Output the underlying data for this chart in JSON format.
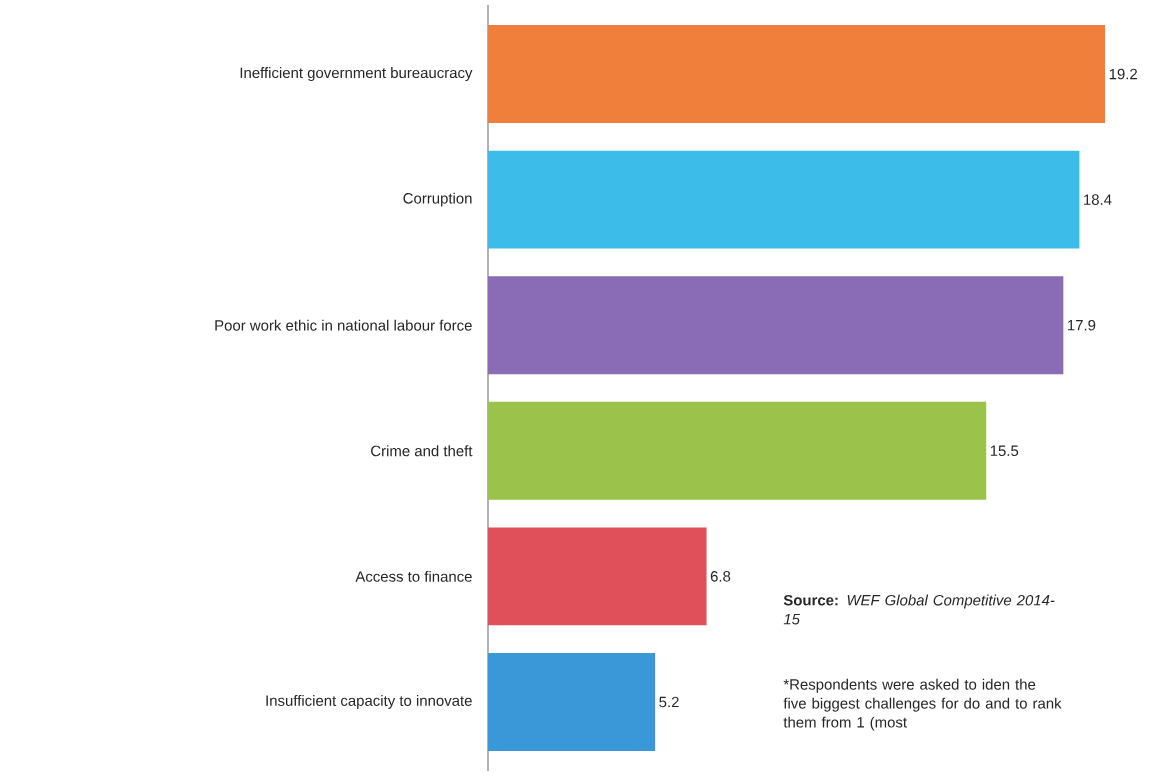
{
  "chart_data": {
    "type": "bar",
    "orientation": "horizontal",
    "data_labels": true,
    "categories": [
      "Inefficient government bureaucracy",
      "Corruption",
      "Poor work ethic in national labour force",
      "Crime and theft",
      "Access to finance",
      "Insufficient capacity to innovate"
    ],
    "values": [
      19.2,
      18.4,
      17.9,
      15.5,
      6.8,
      5.2
    ],
    "colors": [
      "#f07f3c",
      "#3cbce8",
      "#8a6bb5",
      "#9bc24a",
      "#e0505a",
      "#3a98d8"
    ],
    "annotations": [
      "**Source:** *WEF Global Competitive 2014-15*",
      "*Respondents were asked to iden the five biggest challenges for do and to rank them from 1 (most"
    ]
  }
}
